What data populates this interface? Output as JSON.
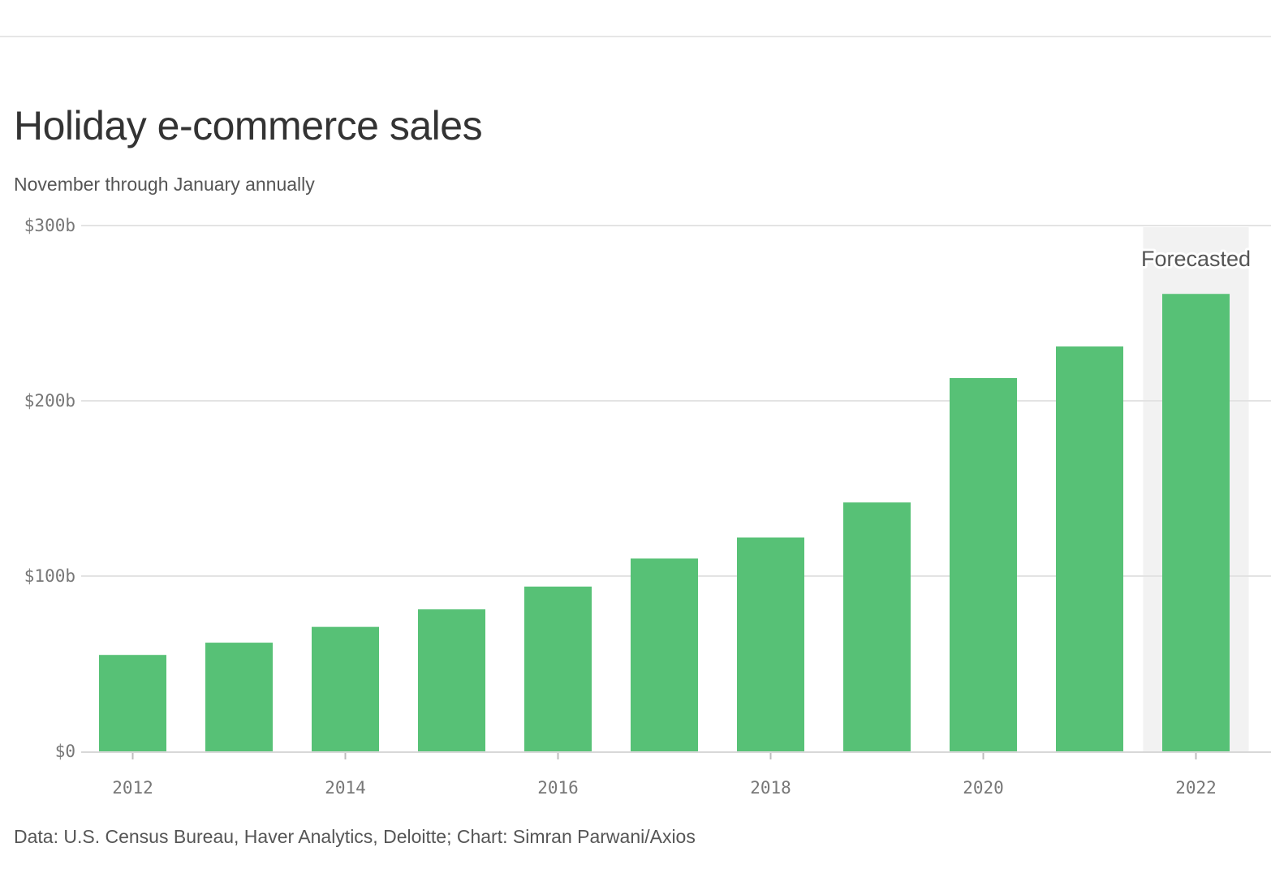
{
  "chart_data": {
    "type": "bar",
    "title": "Holiday e-commerce sales",
    "subtitle": "November through January annually",
    "source": "Data: U.S. Census Bureau, Haver Analytics, Deloitte; Chart: Simran Parwani/Axios",
    "categories": [
      "2012",
      "2013",
      "2014",
      "2015",
      "2016",
      "2017",
      "2018",
      "2019",
      "2020",
      "2021",
      "2022"
    ],
    "values": [
      55,
      62,
      71,
      81,
      94,
      110,
      122,
      142,
      213,
      231,
      261
    ],
    "x_tick_labels": [
      "2012",
      "2014",
      "2016",
      "2018",
      "2020",
      "2022"
    ],
    "y_ticks": [
      0,
      100,
      200,
      300
    ],
    "y_tick_labels": [
      "$0",
      "$100b",
      "$200b",
      "$300b"
    ],
    "ylim": [
      0,
      300
    ],
    "xlabel": "",
    "ylabel": "",
    "grid": true,
    "highlight": {
      "category": "2022",
      "label": "Forecasted"
    },
    "colors": {
      "bar": "#57c176",
      "highlight_band": "#f2f2f2",
      "grid": "#e3e3e3",
      "axis": "#d8d8d8"
    }
  }
}
